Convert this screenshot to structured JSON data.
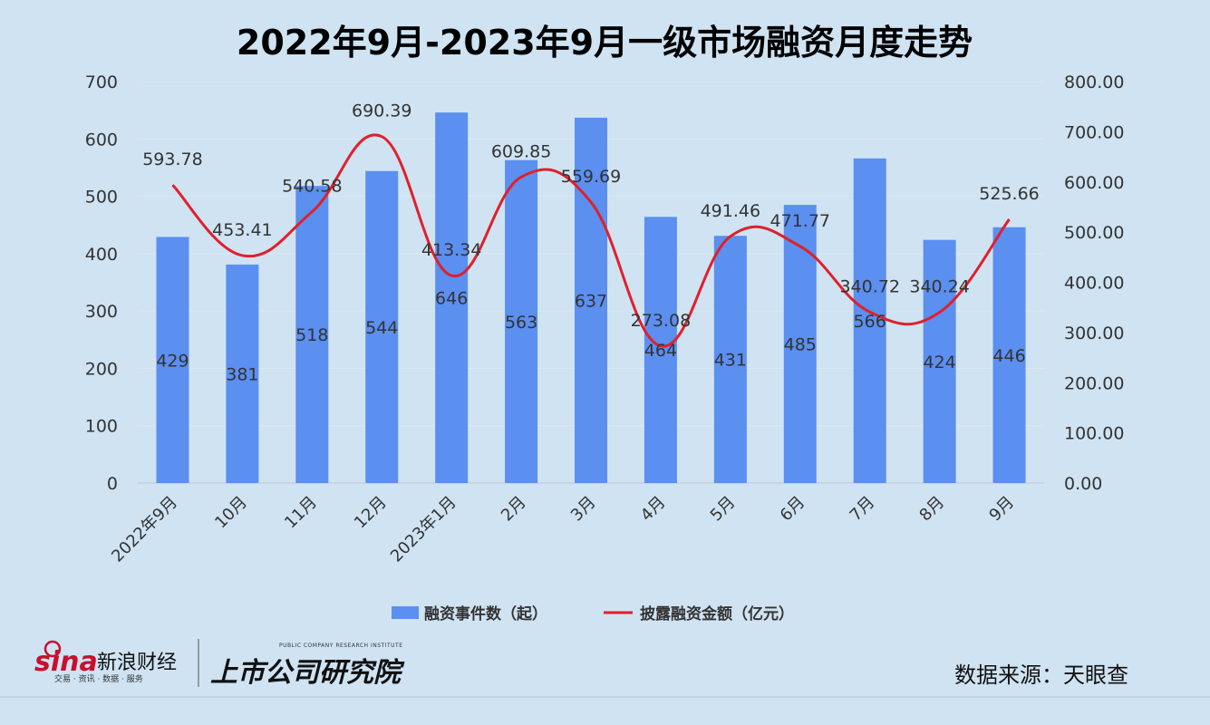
{
  "chart_data": {
    "type": "bar",
    "title": "2022年9月-2023年9月一级市场融资月度走势",
    "categories": [
      "2022年9月",
      "10月",
      "11月",
      "12月",
      "2023年1月",
      "2月",
      "3月",
      "4月",
      "5月",
      "6月",
      "7月",
      "8月",
      "9月"
    ],
    "series": [
      {
        "name": "融资事件数（起）",
        "type": "bar",
        "axis": "left",
        "color": "#5b8ff0",
        "values": [
          429,
          381,
          518,
          544,
          646,
          563,
          637,
          464,
          431,
          485,
          566,
          424,
          446
        ]
      },
      {
        "name": "披露融资金额（亿元）",
        "type": "line",
        "axis": "right",
        "color": "#e0202a",
        "values": [
          593.78,
          453.41,
          540.58,
          690.39,
          413.34,
          609.85,
          559.69,
          273.08,
          491.46,
          471.77,
          340.72,
          340.24,
          525.66
        ]
      }
    ],
    "left_axis": {
      "min": 0,
      "max": 700,
      "step": 100,
      "ticks": [
        "0",
        "100",
        "200",
        "300",
        "400",
        "500",
        "600",
        "700"
      ]
    },
    "right_axis": {
      "min": 0,
      "max": 800,
      "step": 100,
      "ticks": [
        "0.00",
        "100.00",
        "200.00",
        "300.00",
        "400.00",
        "500.00",
        "600.00",
        "700.00",
        "800.00"
      ]
    },
    "grid": true,
    "legend_position": "bottom"
  },
  "footer": {
    "source": "数据来源：天眼查",
    "brand_sina": "sina",
    "brand_sina_cn": "新浪财经",
    "brand_sina_sub": "交易 · 资讯 · 数据 · 服务",
    "brand_institute": "上市公司研究院",
    "brand_institute_en": "PUBLIC COMPANY RESEARCH INSTITUTE"
  }
}
